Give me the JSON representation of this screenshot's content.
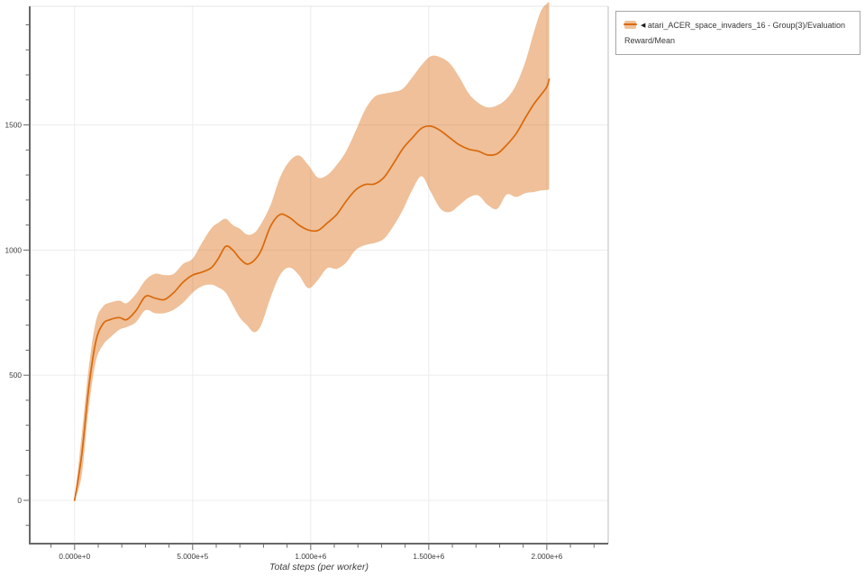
{
  "legend": {
    "prefix": "◀",
    "series_label": "atari_ACER_space_invaders_16 - Group(3)/Evaluation Reward/Mean"
  },
  "colors": {
    "line": "#d9690c",
    "band": "rgba(217,105,12,0.42)",
    "axis": "#686868",
    "grid": "#ececec",
    "plot_top_border": "#e6e6e6",
    "plot_right_border": "#bdbdbd",
    "tick_label": "#3d3d3d"
  },
  "chart_data": {
    "type": "line",
    "title": "",
    "xlabel": "Total steps (per worker)",
    "ylabel": "",
    "xlim": [
      -190000,
      2260000
    ],
    "ylim": [
      -173,
      1974
    ],
    "grid": true,
    "legend_position": "top-right-outside",
    "x_major_ticks": [
      {
        "value": 0,
        "label": "0.000e+0"
      },
      {
        "value": 500000,
        "label": "5.000e+5"
      },
      {
        "value": 1000000,
        "label": "1.000e+6"
      },
      {
        "value": 1500000,
        "label": "1.500e+6"
      },
      {
        "value": 2000000,
        "label": "2.000e+6"
      }
    ],
    "x_minor_step": 100000,
    "y_major_ticks": [
      {
        "value": 0,
        "label": "0"
      },
      {
        "value": 500,
        "label": "500"
      },
      {
        "value": 1000,
        "label": "1000"
      },
      {
        "value": 1500,
        "label": "1500"
      }
    ],
    "y_minor_step": 100,
    "series": [
      {
        "name": "atari_ACER_space_invaders_16 - Group(3)/Evaluation Reward/Mean",
        "color": "#d9690c",
        "band_color": "rgba(217,105,12,0.42)",
        "x": [
          0,
          30000,
          60000,
          90000,
          120000,
          150000,
          190000,
          220000,
          260000,
          300000,
          340000,
          380000,
          420000,
          460000,
          500000,
          540000,
          580000,
          610000,
          640000,
          670000,
          700000,
          730000,
          760000,
          790000,
          830000,
          870000,
          910000,
          950000,
          990000,
          1030000,
          1070000,
          1110000,
          1150000,
          1190000,
          1230000,
          1270000,
          1310000,
          1350000,
          1390000,
          1430000,
          1470000,
          1510000,
          1550000,
          1590000,
          1630000,
          1670000,
          1710000,
          1750000,
          1790000,
          1830000,
          1870000,
          1910000,
          1945000,
          1975000,
          2000000,
          2010000
        ],
        "mean": [
          0,
          180,
          450,
          635,
          705,
          722,
          730,
          722,
          758,
          815,
          808,
          802,
          830,
          872,
          900,
          912,
          930,
          968,
          1015,
          1000,
          966,
          944,
          958,
          998,
          1095,
          1142,
          1130,
          1100,
          1080,
          1078,
          1108,
          1142,
          1195,
          1240,
          1262,
          1264,
          1290,
          1345,
          1405,
          1448,
          1487,
          1495,
          1477,
          1448,
          1420,
          1403,
          1395,
          1380,
          1385,
          1420,
          1465,
          1530,
          1583,
          1620,
          1652,
          1683
        ],
        "band_low": [
          0,
          100,
          370,
          555,
          620,
          650,
          682,
          692,
          712,
          760,
          748,
          748,
          762,
          790,
          830,
          856,
          862,
          850,
          830,
          780,
          730,
          700,
          672,
          700,
          810,
          900,
          930,
          900,
          848,
          880,
          928,
          925,
          950,
          1000,
          1020,
          1028,
          1045,
          1095,
          1160,
          1240,
          1295,
          1230,
          1165,
          1152,
          1180,
          1210,
          1218,
          1180,
          1165,
          1222,
          1212,
          1228,
          1232,
          1238,
          1240,
          1243
        ],
        "band_high": [
          0,
          260,
          530,
          715,
          774,
          790,
          798,
          788,
          825,
          880,
          905,
          900,
          905,
          945,
          966,
          1030,
          1088,
          1110,
          1125,
          1100,
          1085,
          1062,
          1068,
          1105,
          1180,
          1290,
          1355,
          1378,
          1340,
          1290,
          1300,
          1340,
          1395,
          1475,
          1560,
          1612,
          1625,
          1632,
          1645,
          1690,
          1740,
          1775,
          1770,
          1745,
          1690,
          1625,
          1588,
          1570,
          1578,
          1605,
          1660,
          1755,
          1870,
          1955,
          1985,
          1990
        ]
      }
    ]
  }
}
